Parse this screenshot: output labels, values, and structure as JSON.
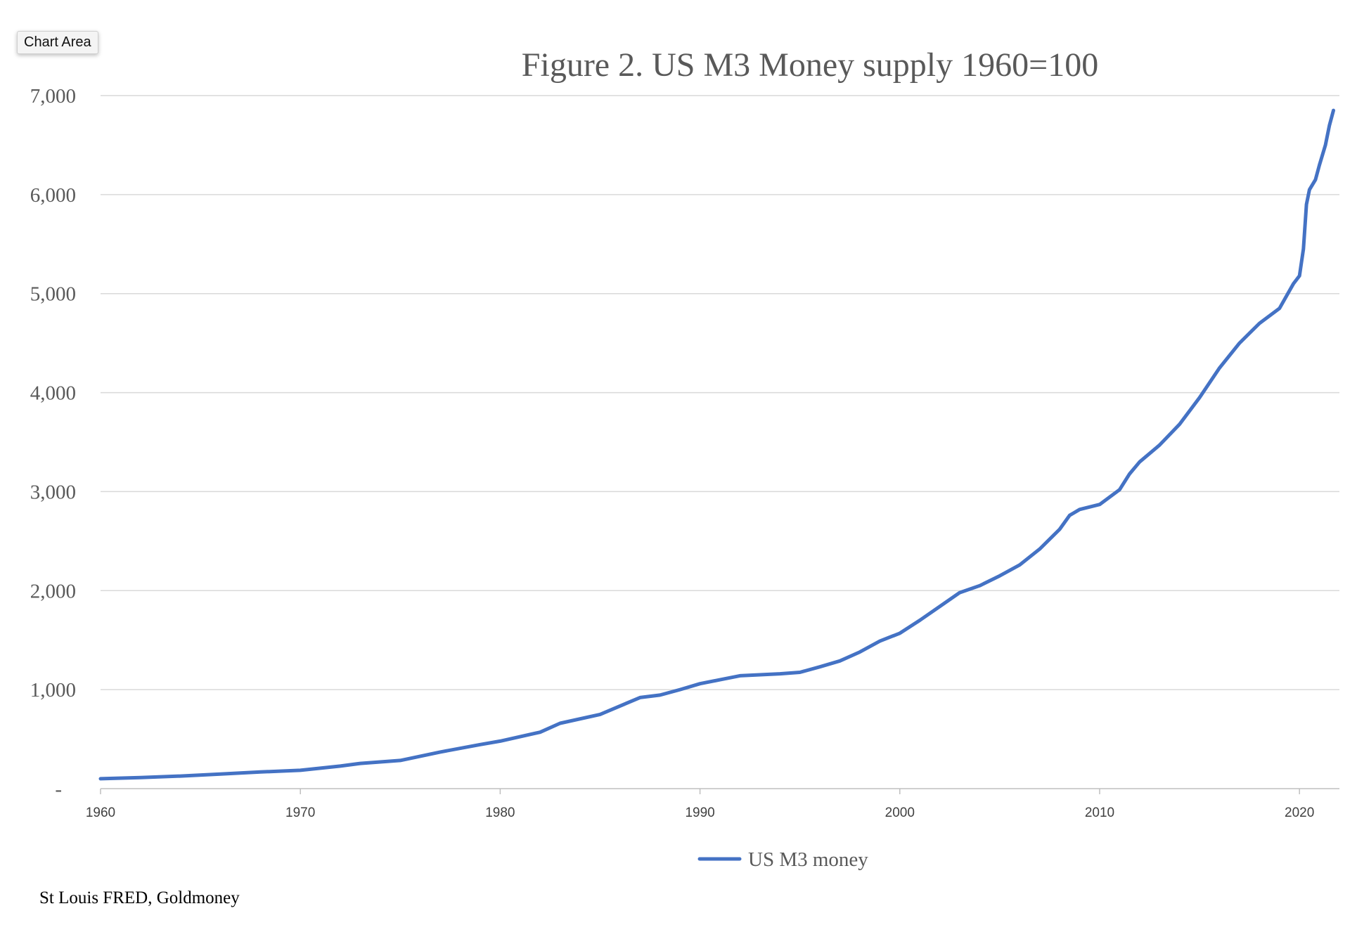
{
  "tooltip": {
    "label": "Chart Area"
  },
  "source_note": "St Louis FRED, Goldmoney",
  "colors": {
    "series": "#4472C4",
    "grid": "#d9d9d9",
    "text": "#595959"
  },
  "chart_data": {
    "type": "line",
    "title": "Figure 2. US M3 Money supply 1960=100",
    "xlabel": "",
    "ylabel": "",
    "xlim": [
      1960,
      2022
    ],
    "ylim": [
      0,
      7000
    ],
    "grid": true,
    "legend_position": "bottom-center",
    "y_ticks": [
      {
        "value": 0,
        "label": "-"
      },
      {
        "value": 1000,
        "label": "1,000"
      },
      {
        "value": 2000,
        "label": "2,000"
      },
      {
        "value": 3000,
        "label": "3,000"
      },
      {
        "value": 4000,
        "label": "4,000"
      },
      {
        "value": 5000,
        "label": "5,000"
      },
      {
        "value": 6000,
        "label": "6,000"
      },
      {
        "value": 7000,
        "label": "7,000"
      }
    ],
    "x_ticks": [
      {
        "value": 1960,
        "label": "1960"
      },
      {
        "value": 1970,
        "label": "1970"
      },
      {
        "value": 1980,
        "label": "1980"
      },
      {
        "value": 1990,
        "label": "1990"
      },
      {
        "value": 2000,
        "label": "2000"
      },
      {
        "value": 2010,
        "label": "2010"
      },
      {
        "value": 2020,
        "label": "2020"
      }
    ],
    "series": [
      {
        "name": "US M3 money",
        "color": "#4472C4",
        "points": [
          [
            1960,
            100
          ],
          [
            1962,
            112
          ],
          [
            1964,
            127
          ],
          [
            1966,
            148
          ],
          [
            1968,
            168
          ],
          [
            1970,
            185
          ],
          [
            1972,
            228
          ],
          [
            1973,
            255
          ],
          [
            1975,
            285
          ],
          [
            1977,
            370
          ],
          [
            1979,
            445
          ],
          [
            1980,
            480
          ],
          [
            1982,
            570
          ],
          [
            1983,
            660
          ],
          [
            1985,
            750
          ],
          [
            1987,
            920
          ],
          [
            1988,
            945
          ],
          [
            1989,
            1000
          ],
          [
            1990,
            1060
          ],
          [
            1991,
            1100
          ],
          [
            1992,
            1140
          ],
          [
            1993,
            1150
          ],
          [
            1994,
            1160
          ],
          [
            1995,
            1175
          ],
          [
            1996,
            1230
          ],
          [
            1997,
            1290
          ],
          [
            1998,
            1380
          ],
          [
            1999,
            1490
          ],
          [
            2000,
            1570
          ],
          [
            2001,
            1700
          ],
          [
            2002,
            1840
          ],
          [
            2003,
            1980
          ],
          [
            2004,
            2050
          ],
          [
            2005,
            2150
          ],
          [
            2006,
            2260
          ],
          [
            2007,
            2420
          ],
          [
            2008,
            2620
          ],
          [
            2008.5,
            2760
          ],
          [
            2009,
            2820
          ],
          [
            2010,
            2870
          ],
          [
            2011,
            3020
          ],
          [
            2011.5,
            3180
          ],
          [
            2012,
            3300
          ],
          [
            2013,
            3470
          ],
          [
            2014,
            3680
          ],
          [
            2015,
            3950
          ],
          [
            2016,
            4250
          ],
          [
            2017,
            4500
          ],
          [
            2018,
            4700
          ],
          [
            2019,
            4850
          ],
          [
            2019.7,
            5100
          ],
          [
            2020.0,
            5180
          ],
          [
            2020.2,
            5450
          ],
          [
            2020.35,
            5900
          ],
          [
            2020.5,
            6050
          ],
          [
            2020.8,
            6150
          ],
          [
            2021.0,
            6300
          ],
          [
            2021.3,
            6500
          ],
          [
            2021.5,
            6700
          ],
          [
            2021.7,
            6850
          ]
        ]
      }
    ]
  }
}
